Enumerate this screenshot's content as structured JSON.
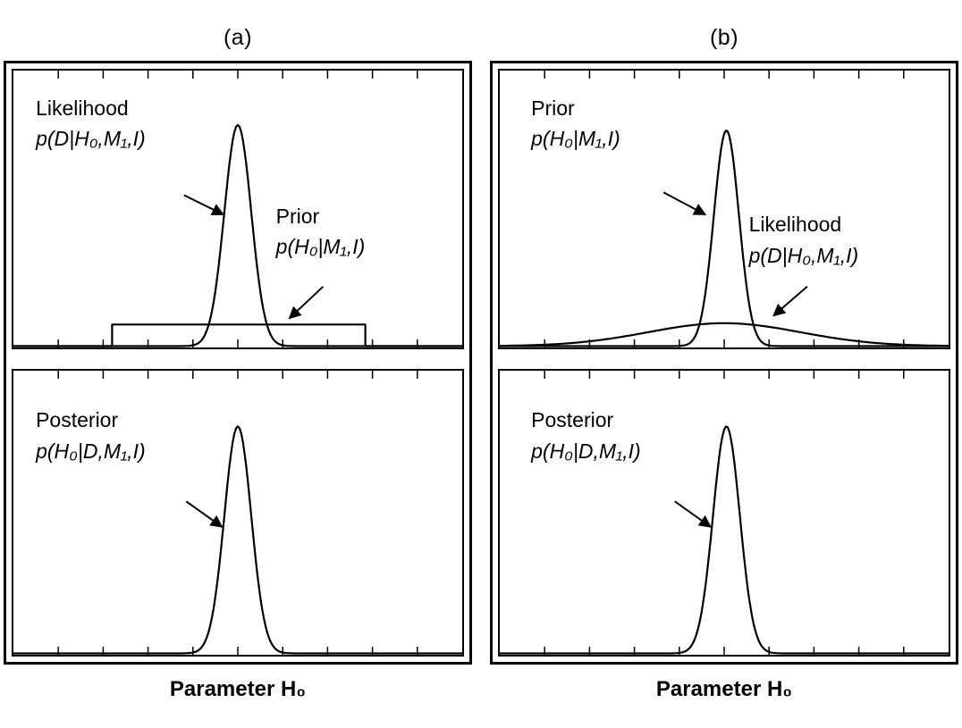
{
  "colors": {
    "ink": "#000000",
    "background": "#ffffff"
  },
  "chart_data": {
    "type": "line",
    "description": "Bayesian parameter estimation illustration: prior x likelihood -> posterior, for (a) uniform prior with narrow likelihood and (b) narrow prior with broad likelihood",
    "xlabel": "Parameter H₀",
    "x_axis": {
      "tick_count_per_edge": 9,
      "tick_labels": [],
      "grid": false
    },
    "y_axis": {
      "tick_labels": [],
      "grid": false
    },
    "columns": [
      {
        "label": "(a)",
        "panels": [
          {
            "name": "panel-a-top",
            "curves": [
              {
                "kind": "gaussian",
                "label": "Likelihood p(D|H₀,M₁,I)",
                "center": 0.5,
                "sigma": 0.03,
                "amplitude": 0.82
              },
              {
                "kind": "boxcar",
                "label": "Prior p(H₀|M₁,I)",
                "from": 0.22,
                "to": 0.784,
                "height": 0.08
              }
            ],
            "annotations": [
              {
                "title": "Likelihood",
                "formula": "p(D|H₀,M₁,I)",
                "tx": 0.05,
                "ty": 0.08,
                "arrow": [
                  0.38,
                  0.45,
                  0.468,
                  0.52
                ]
              },
              {
                "title": "Prior",
                "formula": "p(H₀|M₁,I)",
                "tx": 0.585,
                "ty": 0.47,
                "arrow": [
                  0.69,
                  0.78,
                  0.615,
                  0.895
                ]
              }
            ]
          },
          {
            "name": "panel-a-bottom",
            "curves": [
              {
                "kind": "gaussian",
                "label": "Posterior p(H₀|D,M₁,I)",
                "center": 0.5,
                "sigma": 0.03,
                "amplitude": 0.82
              }
            ],
            "annotations": [
              {
                "title": "Posterior",
                "formula": "p(H₀|D,M₁,I)",
                "tx": 0.05,
                "ty": 0.12,
                "arrow": [
                  0.385,
                  0.46,
                  0.465,
                  0.55
                ]
              }
            ]
          }
        ]
      },
      {
        "label": "(b)",
        "panels": [
          {
            "name": "panel-b-top",
            "curves": [
              {
                "kind": "gaussian",
                "label": "Prior p(H₀|M₁,I)",
                "center": 0.505,
                "sigma": 0.028,
                "amplitude": 0.8
              },
              {
                "kind": "gaussian",
                "label": "Likelihood p(D|H₀,M₁,I)",
                "center": 0.5,
                "sigma": 0.17,
                "amplitude": 0.085
              }
            ],
            "annotations": [
              {
                "title": "Prior",
                "formula": "p(H₀|M₁,I)",
                "tx": 0.07,
                "ty": 0.08,
                "arrow": [
                  0.365,
                  0.44,
                  0.458,
                  0.52
                ]
              },
              {
                "title": "Likelihood",
                "formula": "p(D|H₀,M₁,I)",
                "tx": 0.555,
                "ty": 0.5,
                "arrow": [
                  0.685,
                  0.78,
                  0.61,
                  0.885
                ]
              }
            ]
          },
          {
            "name": "panel-b-bottom",
            "curves": [
              {
                "kind": "gaussian",
                "label": "Posterior p(H₀|D,M₁,I)",
                "center": 0.505,
                "sigma": 0.03,
                "amplitude": 0.82
              }
            ],
            "annotations": [
              {
                "title": "Posterior",
                "formula": "p(H₀|D,M₁,I)",
                "tx": 0.07,
                "ty": 0.12,
                "arrow": [
                  0.39,
                  0.46,
                  0.47,
                  0.55
                ]
              }
            ]
          }
        ]
      }
    ]
  }
}
